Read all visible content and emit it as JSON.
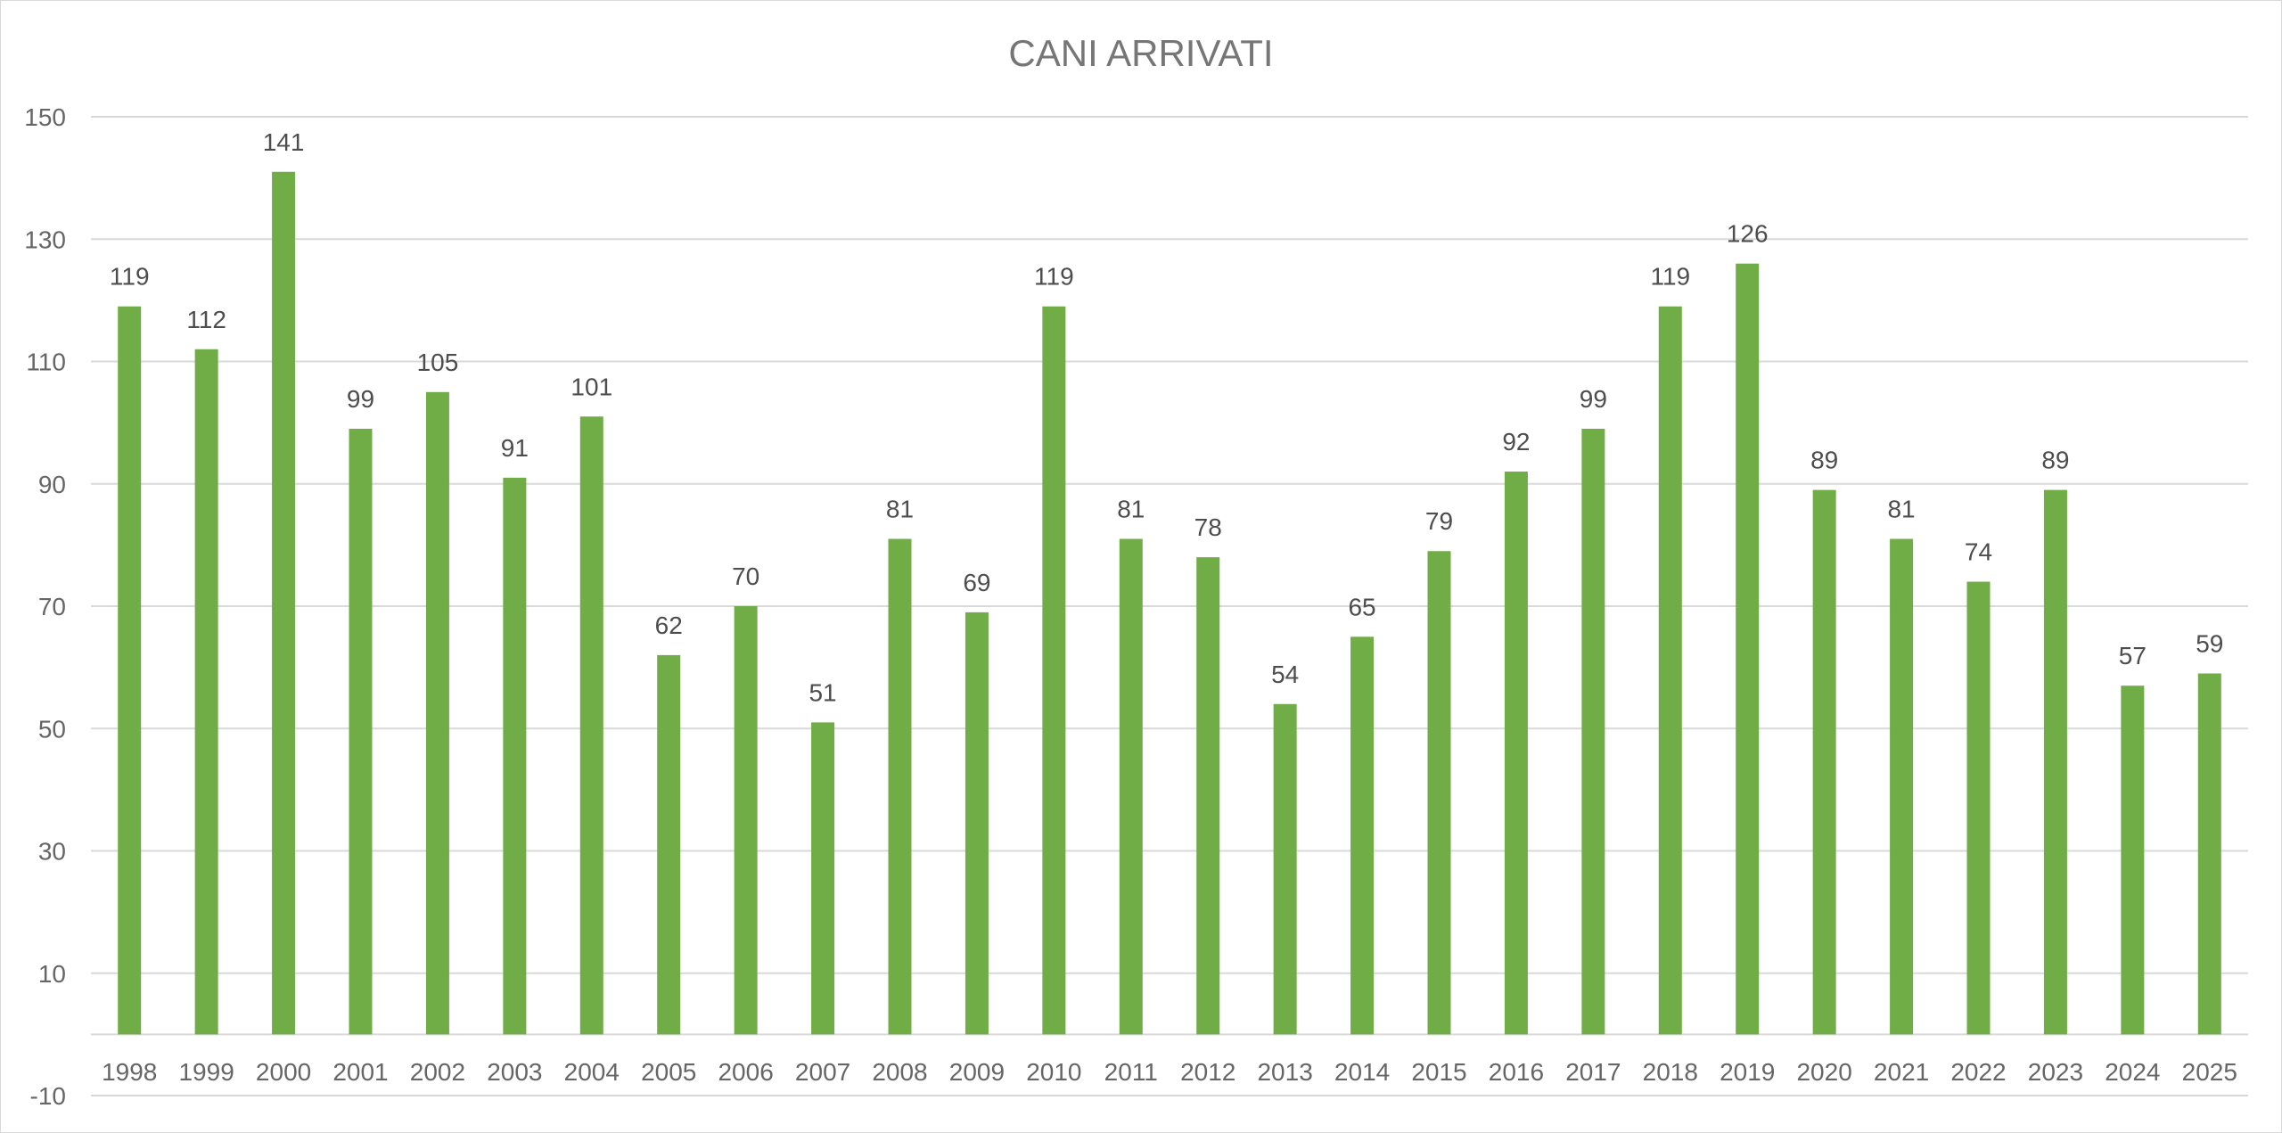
{
  "chart_data": {
    "type": "bar",
    "title": "CANI ARRIVATI",
    "xlabel": "",
    "ylabel": "",
    "categories": [
      "1998",
      "1999",
      "2000",
      "2001",
      "2002",
      "2003",
      "2004",
      "2005",
      "2006",
      "2007",
      "2008",
      "2009",
      "2010",
      "2011",
      "2012",
      "2013",
      "2014",
      "2015",
      "2016",
      "2017",
      "2018",
      "2019",
      "2020",
      "2021",
      "2022",
      "2023",
      "2024",
      "2025"
    ],
    "values": [
      119,
      112,
      141,
      99,
      105,
      91,
      101,
      62,
      70,
      51,
      81,
      69,
      119,
      81,
      78,
      54,
      65,
      79,
      92,
      99,
      119,
      126,
      89,
      81,
      74,
      89,
      57,
      59
    ],
    "ylim": [
      -10,
      150
    ],
    "yticks": [
      -10,
      10,
      30,
      50,
      70,
      90,
      110,
      130,
      150
    ],
    "grid": true,
    "legend": "none",
    "data_labels": true,
    "colors": {
      "bar": "#70ad47",
      "grid": "#d9d9d9",
      "axis": "#d9d9d9"
    }
  }
}
